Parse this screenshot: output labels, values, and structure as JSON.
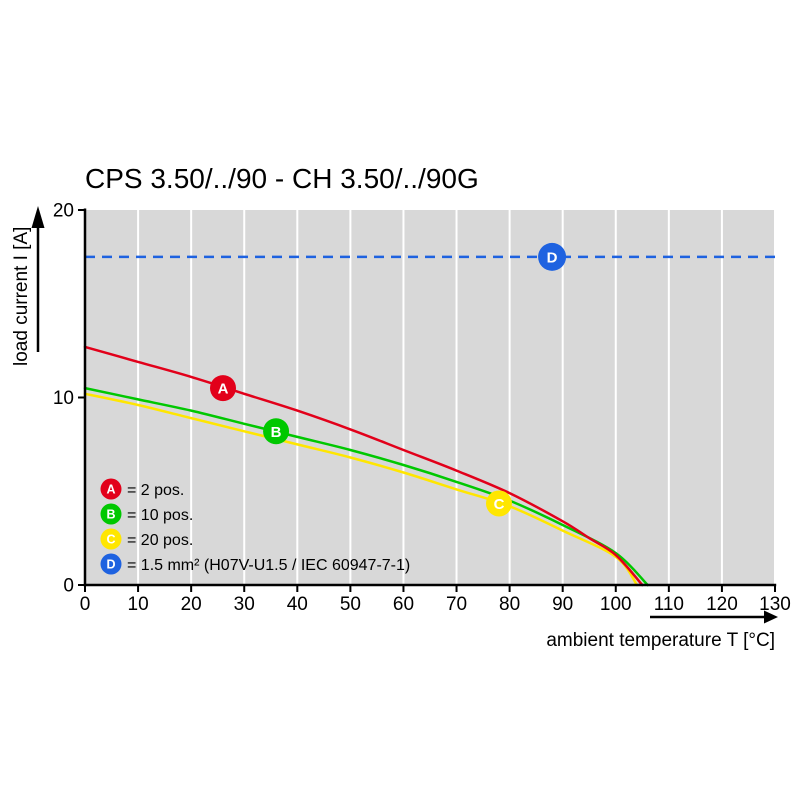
{
  "page": {
    "title": "CPS 3.50/../90 - CH 3.50/../90G"
  },
  "chart_data": {
    "type": "line",
    "title": "CPS 3.50/../90 - CH 3.50/../90G",
    "xlabel": "ambient temperature T [°C]",
    "ylabel": "load current I [A]",
    "xlim": [
      0,
      130
    ],
    "ylim": [
      0,
      20
    ],
    "x_ticks": [
      0,
      10,
      20,
      30,
      40,
      50,
      60,
      70,
      80,
      90,
      100,
      110,
      120,
      130
    ],
    "y_ticks": [
      0,
      10,
      20
    ],
    "grid": "vertical-white-on-gray",
    "plot_bg": "#d8d8d8",
    "grid_color": "#ffffff",
    "legend_position": "inside-bottom-left",
    "series": [
      {
        "letter": "A",
        "legend_label": "= 2 pos.",
        "color": "#e2001a",
        "type": "curve",
        "marker_at": [
          26,
          10.5
        ],
        "points": [
          [
            0,
            12.7
          ],
          [
            10,
            11.9
          ],
          [
            20,
            11.1
          ],
          [
            30,
            10.2
          ],
          [
            40,
            9.3
          ],
          [
            50,
            8.3
          ],
          [
            60,
            7.2
          ],
          [
            70,
            6.1
          ],
          [
            80,
            4.9
          ],
          [
            90,
            3.4
          ],
          [
            95,
            2.5
          ],
          [
            100,
            1.6
          ],
          [
            105,
            0
          ]
        ]
      },
      {
        "letter": "B",
        "legend_label": "= 10 pos.",
        "color": "#00c800",
        "type": "curve",
        "marker_at": [
          36,
          8.2
        ],
        "points": [
          [
            0,
            10.5
          ],
          [
            10,
            9.9
          ],
          [
            20,
            9.3
          ],
          [
            30,
            8.6
          ],
          [
            40,
            7.9
          ],
          [
            50,
            7.2
          ],
          [
            60,
            6.4
          ],
          [
            70,
            5.5
          ],
          [
            80,
            4.5
          ],
          [
            90,
            3.2
          ],
          [
            100,
            1.7
          ],
          [
            106,
            0
          ]
        ]
      },
      {
        "letter": "C",
        "legend_label": "= 20 pos.",
        "color": "#ffe600",
        "type": "curve",
        "marker_at": [
          78,
          4.35
        ],
        "points": [
          [
            0,
            10.2
          ],
          [
            10,
            9.6
          ],
          [
            20,
            8.9
          ],
          [
            30,
            8.2
          ],
          [
            40,
            7.5
          ],
          [
            50,
            6.8
          ],
          [
            60,
            6.0
          ],
          [
            70,
            5.1
          ],
          [
            80,
            4.2
          ],
          [
            90,
            2.9
          ],
          [
            100,
            1.5
          ],
          [
            104,
            0
          ]
        ]
      },
      {
        "letter": "D",
        "legend_label": "= 1.5 mm² (H07V-U1.5 / IEC 60947-7-1)",
        "color": "#1e62e0",
        "type": "hline",
        "value": 17.5,
        "dashed": true,
        "marker_at": [
          88,
          17.5
        ]
      }
    ]
  }
}
